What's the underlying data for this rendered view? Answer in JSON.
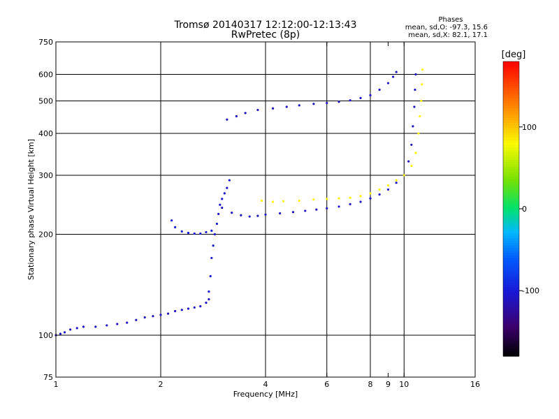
{
  "chart_data": {
    "type": "scatter",
    "title": "Tromsø 20140317 12:12:00-12:13:43",
    "subtitle": "RwPretec (8p)",
    "phase_box": {
      "title": "Phases",
      "line_o": "mean, sd,O: -97.3, 15.6",
      "line_x": "mean, sd,X:  82.1, 17.1"
    },
    "xlabel": "Frequency [MHz]",
    "ylabel": "Stationary phase Virtual Height [km]",
    "x_scale": "log",
    "y_scale": "log",
    "xlim": [
      1,
      16
    ],
    "ylim": [
      75,
      750
    ],
    "x_ticks": [
      1,
      2,
      4,
      6,
      8,
      9,
      10,
      16
    ],
    "x_tick_labels": [
      "1",
      "2",
      "4",
      "6",
      "8",
      "9",
      "10",
      "16"
    ],
    "x_grid_lines": [
      2,
      4,
      6,
      8,
      10
    ],
    "y_ticks": [
      75,
      100,
      200,
      300,
      400,
      500,
      600,
      750
    ],
    "y_tick_labels": [
      "75",
      "100",
      "200",
      "300",
      "400",
      "500",
      "600",
      "750"
    ],
    "y_grid_lines": [
      100,
      200,
      300,
      400,
      500,
      600
    ],
    "grid": true,
    "colorbar": {
      "label": "[deg]",
      "range": [
        -180,
        180
      ],
      "ticks": [
        100,
        0,
        -100
      ],
      "tick_labels": [
        "100",
        "0",
        "-100"
      ]
    },
    "series": [
      {
        "trace": "o_e_layer_low",
        "phase": -110,
        "points": [
          [
            1.0,
            100
          ],
          [
            1.03,
            101
          ],
          [
            1.06,
            102
          ],
          [
            1.1,
            104
          ],
          [
            1.15,
            105
          ],
          [
            1.2,
            106
          ],
          [
            1.3,
            106
          ],
          [
            1.4,
            107
          ],
          [
            1.5,
            108
          ],
          [
            1.6,
            109
          ],
          [
            1.7,
            111
          ],
          [
            1.8,
            113
          ],
          [
            1.9,
            114
          ],
          [
            2.0,
            115
          ],
          [
            2.1,
            116
          ],
          [
            2.2,
            118
          ],
          [
            2.3,
            119
          ],
          [
            2.4,
            120
          ],
          [
            2.5,
            121
          ],
          [
            2.6,
            122
          ],
          [
            2.7,
            125
          ],
          [
            2.75,
            128
          ]
        ]
      },
      {
        "trace": "o_es_rise",
        "phase": -105,
        "points": [
          [
            2.75,
            135
          ],
          [
            2.78,
            150
          ],
          [
            2.8,
            170
          ],
          [
            2.83,
            185
          ],
          [
            2.86,
            200
          ],
          [
            2.9,
            215
          ],
          [
            2.93,
            230
          ],
          [
            2.96,
            245
          ],
          [
            3.0,
            255
          ],
          [
            3.05,
            265
          ],
          [
            3.1,
            275
          ],
          [
            3.15,
            290
          ]
        ]
      },
      {
        "trace": "o_f_low_cusp",
        "phase": -100,
        "points": [
          [
            2.15,
            220
          ],
          [
            2.2,
            210
          ],
          [
            2.3,
            204
          ],
          [
            2.4,
            202
          ],
          [
            2.5,
            201
          ],
          [
            2.6,
            201
          ],
          [
            2.7,
            203
          ],
          [
            2.8,
            205
          ]
        ]
      },
      {
        "trace": "o_f2",
        "phase": -110,
        "points": [
          [
            3.0,
            240
          ],
          [
            3.2,
            232
          ],
          [
            3.4,
            228
          ],
          [
            3.6,
            226
          ],
          [
            3.8,
            227
          ],
          [
            4.0,
            229
          ],
          [
            4.4,
            231
          ],
          [
            4.8,
            233
          ],
          [
            5.2,
            235
          ],
          [
            5.6,
            237
          ],
          [
            6.0,
            239
          ],
          [
            6.5,
            242
          ],
          [
            7.0,
            246
          ],
          [
            7.5,
            250
          ],
          [
            8.0,
            256
          ],
          [
            8.5,
            263
          ],
          [
            9.0,
            272
          ],
          [
            9.5,
            285
          ],
          [
            10.0,
            300
          ],
          [
            10.3,
            330
          ],
          [
            10.5,
            370
          ],
          [
            10.6,
            420
          ],
          [
            10.7,
            480
          ],
          [
            10.75,
            540
          ],
          [
            10.8,
            600
          ]
        ]
      },
      {
        "trace": "x_f2",
        "phase": 82,
        "points": [
          [
            3.9,
            252
          ],
          [
            4.2,
            250
          ],
          [
            4.5,
            251
          ],
          [
            5.0,
            252
          ],
          [
            5.5,
            254
          ],
          [
            6.0,
            255
          ],
          [
            6.5,
            256
          ],
          [
            7.0,
            257
          ],
          [
            7.5,
            260
          ],
          [
            8.0,
            265
          ],
          [
            8.5,
            272
          ],
          [
            9.0,
            280
          ],
          [
            9.5,
            290
          ],
          [
            10.0,
            300
          ],
          [
            10.5,
            320
          ],
          [
            10.8,
            350
          ],
          [
            11.0,
            400
          ],
          [
            11.1,
            450
          ],
          [
            11.2,
            500
          ],
          [
            11.25,
            560
          ],
          [
            11.3,
            620
          ]
        ]
      },
      {
        "trace": "o_f2_multiple",
        "phase": -110,
        "points": [
          [
            3.1,
            440
          ],
          [
            3.3,
            450
          ],
          [
            3.5,
            460
          ],
          [
            3.8,
            470
          ],
          [
            4.2,
            475
          ],
          [
            4.6,
            480
          ],
          [
            5.0,
            485
          ],
          [
            5.5,
            490
          ],
          [
            6.0,
            493
          ],
          [
            6.5,
            497
          ],
          [
            7.0,
            502
          ],
          [
            7.5,
            510
          ],
          [
            8.0,
            520
          ],
          [
            8.5,
            540
          ],
          [
            9.0,
            565
          ],
          [
            9.3,
            590
          ],
          [
            9.5,
            610
          ]
        ]
      }
    ]
  }
}
